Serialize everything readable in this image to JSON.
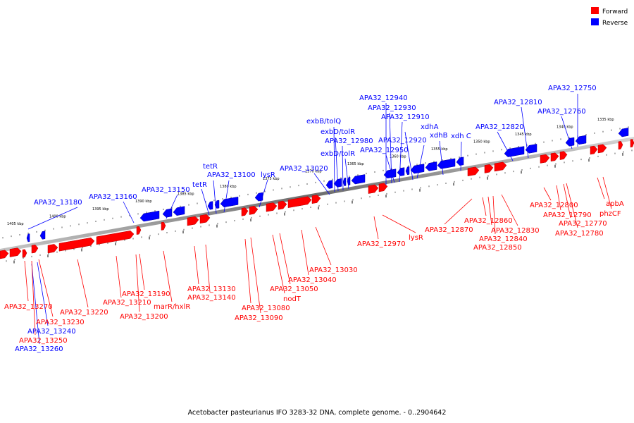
{
  "caption": "Acetobacter pasteurianus IFO 3283-32 DNA, complete genome. - 0..2904642",
  "legend": {
    "forward": {
      "label": "Forward",
      "color": "#ff0000"
    },
    "reverse": {
      "label": "Reverse",
      "color": "#0000ff"
    }
  },
  "ticks": [
    "1405 kbp",
    "1400 kbp",
    "1395 kbp",
    "1390 kbp",
    "1385 kbp",
    "1380 kbp",
    "1375 kbp",
    "1370 kbp",
    "1365 kbp",
    "1360 kbp",
    "1355 kbp",
    "1350 kbp",
    "1345 kbp",
    "1340 kbp",
    "1335 kbp"
  ],
  "labels": {
    "reverse": [
      "APA32_13180",
      "APA32_13160",
      "APA32_13150",
      "tetR",
      "tetR",
      "APA32_13100",
      "lysR",
      "APA32_13020",
      "exbB/tolQ",
      "exbD/tolR",
      "APA32_12980",
      "exbD/tolR",
      "APA32_12940",
      "APA32_12930",
      "APA32_12910",
      "xdhA",
      "APA32_12920",
      "APA32_12950",
      "xdhB",
      "xdh C",
      "APA32_12820",
      "APA32_12810",
      "APA32_12760",
      "APA32_12750",
      "APA32_13240",
      "APA32_13260"
    ],
    "forward": [
      "APA32_13270",
      "APA32_13250",
      "APA32_13230",
      "APA32_13220",
      "APA32_13210",
      "APA32_13190",
      "APA32_13200",
      "marR/hxlR",
      "APA32_13130",
      "APA32_13140",
      "APA32_13080",
      "APA32_13090",
      "nodT",
      "APA32_13050",
      "APA32_13040",
      "APA32_13030",
      "APA32_12970",
      "lysR",
      "APA32_12870",
      "APA32_12860",
      "APA32_12830",
      "APA32_12840",
      "APA32_12850",
      "APA32_12800",
      "APA32_12790",
      "APA32_12770",
      "APA32_12780",
      "apbA",
      "phzCF"
    ]
  }
}
